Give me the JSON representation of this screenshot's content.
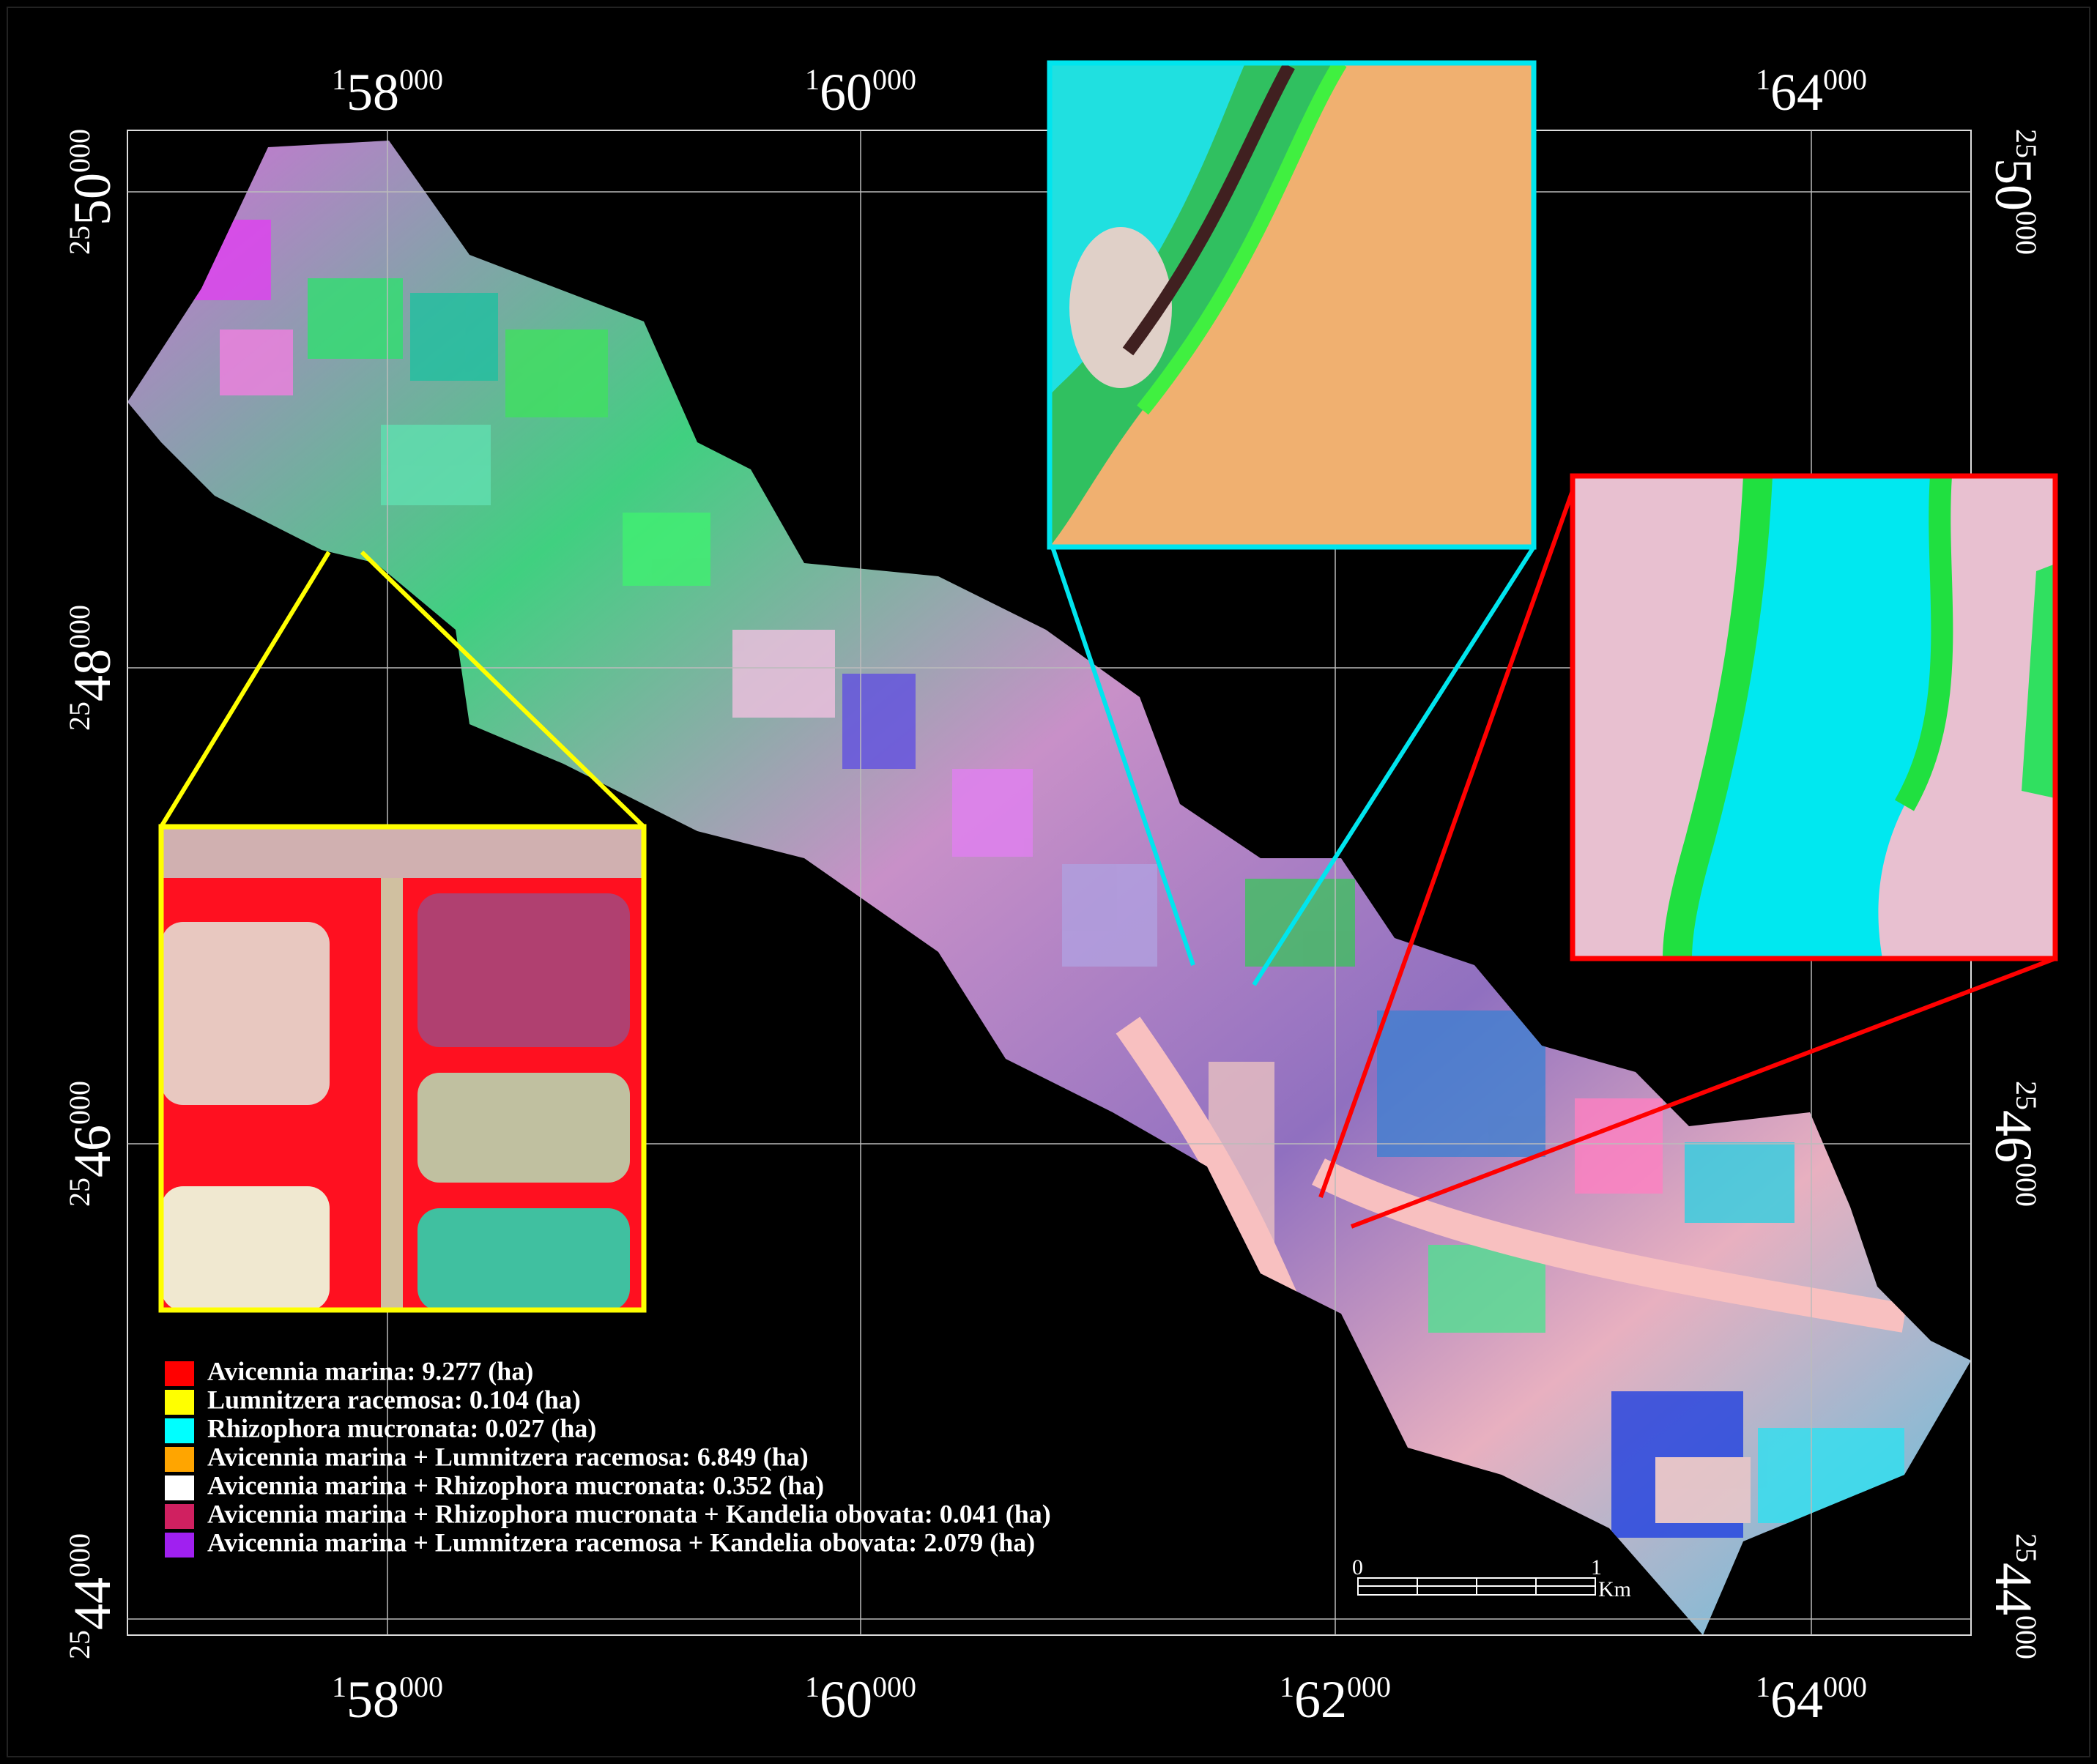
{
  "grid_labels": {
    "top": [
      {
        "prefix": "1",
        "main": "58",
        "suffix": "000"
      },
      {
        "prefix": "1",
        "main": "60",
        "suffix": "000"
      },
      {
        "prefix": "1",
        "main": "64",
        "suffix": "000"
      }
    ],
    "bottom": [
      {
        "prefix": "1",
        "main": "58",
        "suffix": "000"
      },
      {
        "prefix": "1",
        "main": "60",
        "suffix": "000"
      },
      {
        "prefix": "1",
        "main": "62",
        "suffix": "000"
      },
      {
        "prefix": "1",
        "main": "64",
        "suffix": "000"
      }
    ],
    "left": [
      {
        "prefix": "25",
        "main": "50",
        "suffix": "000"
      },
      {
        "prefix": "25",
        "main": "48",
        "suffix": "000"
      },
      {
        "prefix": "25",
        "main": "46",
        "suffix": "000"
      },
      {
        "prefix": "25",
        "main": "44",
        "suffix": "000"
      }
    ],
    "right": [
      {
        "prefix": "25",
        "main": "50",
        "suffix": "000"
      },
      {
        "prefix": "25",
        "main": "46",
        "suffix": "000"
      },
      {
        "prefix": "25",
        "main": "44",
        "suffix": "000"
      }
    ]
  },
  "legend": [
    {
      "text": "Avicennia marina: 9.277 (ha)",
      "color": "#ff0000"
    },
    {
      "text": "Lumnitzera racemosa: 0.104 (ha)",
      "color": "#ffff00"
    },
    {
      "text": "Rhizophora mucronata: 0.027 (ha)",
      "color": "#00ffff"
    },
    {
      "text": "Avicennia marina + Lumnitzera racemosa: 6.849 (ha)",
      "color": "#ffa500"
    },
    {
      "text": "Avicennia marina + Rhizophora mucronata: 0.352 (ha)",
      "color": "#ffffff"
    },
    {
      "text": "Avicennia marina + Rhizophora mucronata + Kandelia obovata: 0.041 (ha)",
      "color": "#d02060"
    },
    {
      "text": "Avicennia marina + Lumnitzera racemosa + Kandelia obovata: 2.079 (ha)",
      "color": "#a020f0"
    }
  ],
  "scale_bar": {
    "start": "0",
    "end": "1",
    "unit": "Km"
  }
}
